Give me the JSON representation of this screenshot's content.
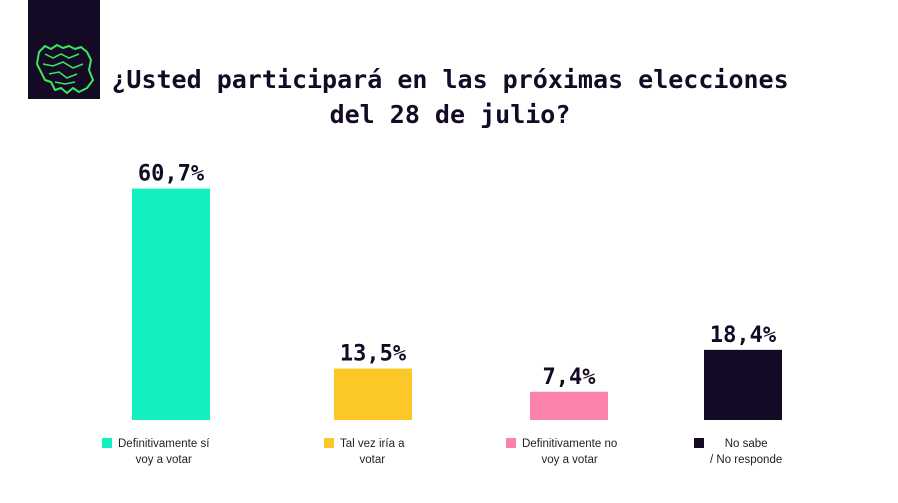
{
  "logo": {
    "icon": "venezuela-map-icon",
    "color": "#39e85a"
  },
  "title": {
    "line1": "¿Usted participará en las próximas elecciones",
    "line2": "del 28 de julio?"
  },
  "chart_data": {
    "type": "bar",
    "categories": [
      "Definitivamente sí voy a votar",
      "Tal vez iría a votar",
      "Definitivamente no voy a votar",
      "No sabe / No responde"
    ],
    "values": [
      60.7,
      13.5,
      7.4,
      18.4
    ],
    "value_labels": [
      "60,7%",
      "13,5%",
      "7,4%",
      "18,4%"
    ],
    "colors": [
      "#12f0c0",
      "#fcc828",
      "#fd82ab",
      "#140a26"
    ],
    "ylim": [
      0,
      64
    ],
    "grid": false,
    "legend_position": "bottom",
    "legend": [
      {
        "line1": "Definitivamente sí",
        "line2": "voy a votar"
      },
      {
        "line1": "Tal vez iría a",
        "line2": "votar"
      },
      {
        "line1": "Definitivamente no",
        "line2": "voy a votar"
      },
      {
        "line1": "No sabe",
        "line2": "/ No responde"
      }
    ]
  }
}
